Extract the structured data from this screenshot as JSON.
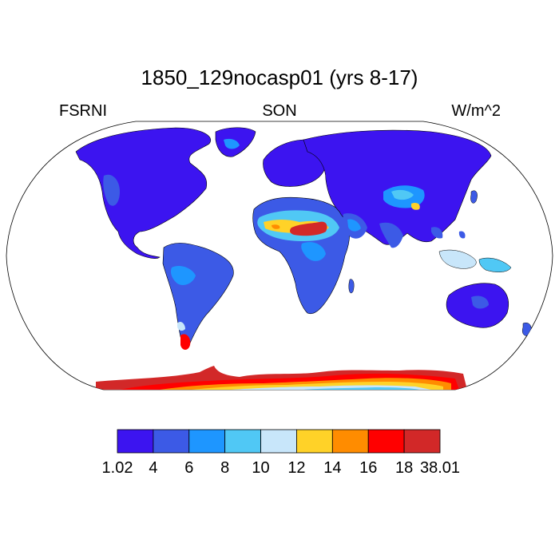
{
  "title": "1850_129nocasp01 (yrs 8-17)",
  "left_label": "FSRNI",
  "center_label": "SON",
  "right_label": "W/m^2",
  "projection": "Robinson",
  "colorbar": {
    "colors": [
      "#3c14f0",
      "#3c5ae6",
      "#1e96ff",
      "#50c8f5",
      "#c8e6fa",
      "#ffd228",
      "#ff8c00",
      "#ff0000",
      "#d22828"
    ],
    "labels": [
      "1.02",
      "4",
      "6",
      "8",
      "10",
      "12",
      "14",
      "16",
      "18",
      "38.01"
    ]
  },
  "chart_data": {
    "type": "heatmap",
    "title": "1850_129nocasp01 (yrs 8-17)",
    "variable": "FSRNI",
    "season": "SON",
    "units": "W/m^2",
    "levels": [
      1.02,
      4,
      6,
      8,
      10,
      12,
      14,
      16,
      18,
      38.01
    ],
    "regions": [
      {
        "name": "North America",
        "level": "1.02-4"
      },
      {
        "name": "South America",
        "level": "4-8"
      },
      {
        "name": "Europe",
        "level": "1.02-4"
      },
      {
        "name": "Sahara",
        "level": "10-18"
      },
      {
        "name": "Arabian Peninsula",
        "level": "6-10"
      },
      {
        "name": "Tibetan Plateau",
        "level": "8-12"
      },
      {
        "name": "Australia",
        "level": "4-6"
      },
      {
        "name": "Antarctica",
        "level": "8-38.01"
      }
    ]
  }
}
